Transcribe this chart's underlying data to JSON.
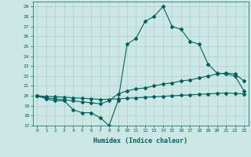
{
  "xlabel": "Humidex (Indice chaleur)",
  "bg_color": "#cde8e4",
  "line_color": "#006060",
  "xlim": [
    -0.5,
    23.5
  ],
  "ylim": [
    17,
    29.5
  ],
  "yticks": [
    17,
    18,
    19,
    20,
    21,
    22,
    23,
    24,
    25,
    26,
    27,
    28,
    29
  ],
  "xticks": [
    0,
    1,
    2,
    3,
    4,
    5,
    6,
    7,
    8,
    9,
    10,
    11,
    12,
    13,
    14,
    15,
    16,
    17,
    18,
    19,
    20,
    21,
    22,
    23
  ],
  "line1_x": [
    0,
    1,
    2,
    3,
    4,
    5,
    6,
    7,
    8,
    9,
    10,
    11,
    12,
    13,
    14,
    15,
    16,
    17,
    18,
    19,
    20,
    21,
    22,
    23
  ],
  "line1_y": [
    20.0,
    19.7,
    19.5,
    19.5,
    18.6,
    18.3,
    18.3,
    17.8,
    17.0,
    19.5,
    25.2,
    25.8,
    27.5,
    28.0,
    29.0,
    27.0,
    26.7,
    25.5,
    25.2,
    23.2,
    22.3,
    22.2,
    22.0,
    20.5
  ],
  "line2_x": [
    0,
    1,
    2,
    3,
    4,
    5,
    6,
    7,
    8,
    9,
    10,
    11,
    12,
    13,
    14,
    15,
    16,
    17,
    18,
    19,
    20,
    21,
    22,
    23
  ],
  "line2_y": [
    20.0,
    19.8,
    19.7,
    19.6,
    19.5,
    19.4,
    19.3,
    19.2,
    19.5,
    20.2,
    20.5,
    20.7,
    20.8,
    21.0,
    21.2,
    21.3,
    21.5,
    21.6,
    21.8,
    22.0,
    22.2,
    22.3,
    22.2,
    21.5
  ],
  "line3_x": [
    0,
    1,
    2,
    3,
    4,
    5,
    6,
    7,
    8,
    9,
    10,
    11,
    12,
    13,
    14,
    15,
    16,
    17,
    18,
    19,
    20,
    21,
    22,
    23
  ],
  "line3_y": [
    20.0,
    19.95,
    19.9,
    19.85,
    19.8,
    19.75,
    19.7,
    19.65,
    19.65,
    19.7,
    19.75,
    19.8,
    19.85,
    19.9,
    19.95,
    20.0,
    20.05,
    20.1,
    20.15,
    20.2,
    20.25,
    20.28,
    20.25,
    20.2
  ],
  "grid_color": "#aed4d0",
  "markersize": 2.0
}
